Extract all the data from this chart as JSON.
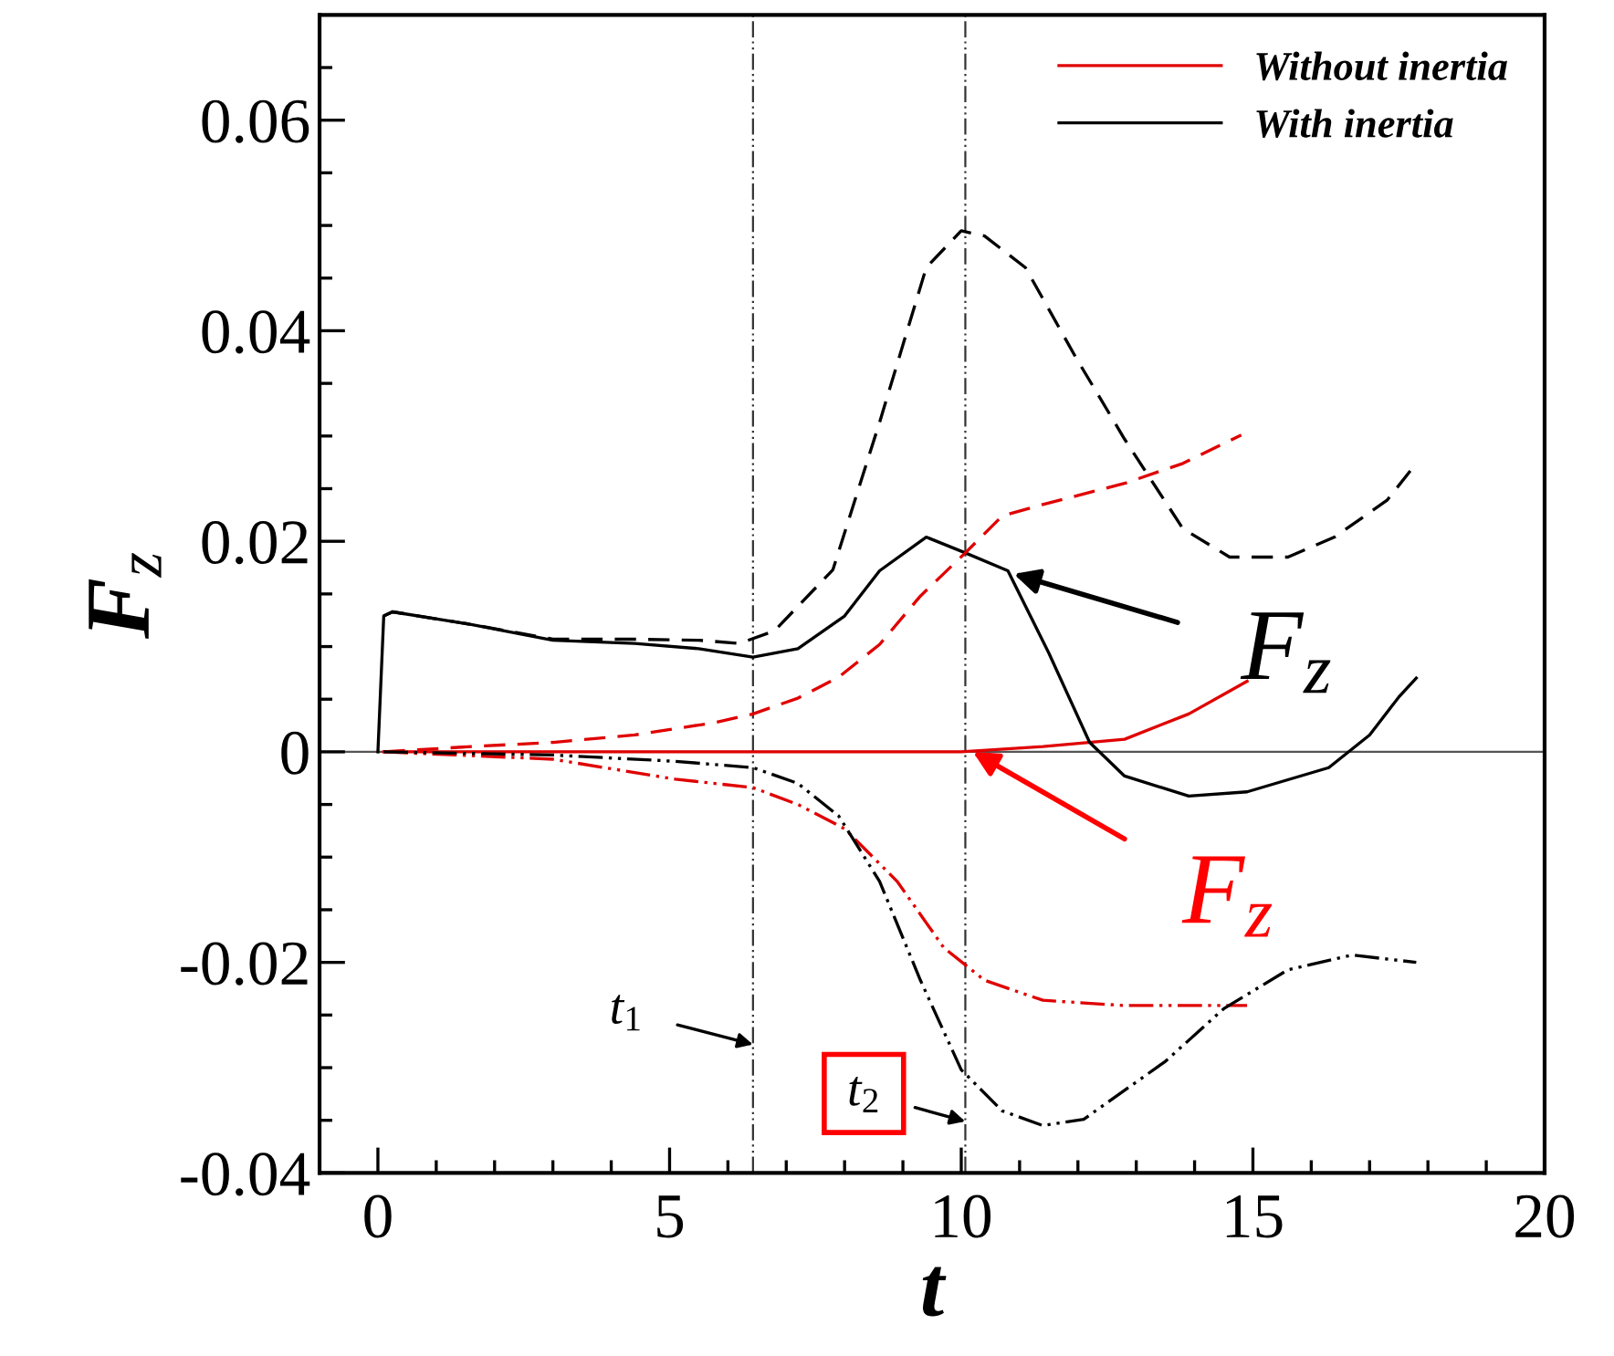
{
  "chart_data": {
    "type": "line",
    "xlabel": "t",
    "ylabel": "F$_{z}$",
    "xlim": [
      -1,
      20
    ],
    "ylim": [
      -0.04,
      0.07
    ],
    "xticks": [
      0,
      {
        "value": 1,
        "label": null
      },
      {
        "value": 2,
        "label": null
      },
      {
        "value": 3,
        "label": null
      },
      {
        "value": 4,
        "label": null
      },
      5,
      {
        "value": 6,
        "label": null
      },
      {
        "value": 7,
        "label": null
      },
      {
        "value": 8,
        "label": null
      },
      {
        "value": 9,
        "label": null
      },
      10,
      {
        "value": 11,
        "label": null
      },
      {
        "value": 12,
        "label": null
      },
      {
        "value": 13,
        "label": null
      },
      {
        "value": 14,
        "label": null
      },
      15,
      {
        "value": 16,
        "label": null
      },
      {
        "value": 17,
        "label": null
      },
      {
        "value": 18,
        "label": null
      },
      {
        "value": 19,
        "label": null
      },
      20
    ],
    "yticks": [
      -0.04,
      {
        "value": -0.035,
        "label": null
      },
      {
        "value": -0.03,
        "label": null
      },
      {
        "value": -0.025,
        "label": null
      },
      -0.02,
      {
        "value": -0.015,
        "label": null
      },
      {
        "value": -0.01,
        "label": null
      },
      {
        "value": -0.005,
        "label": null
      },
      0,
      {
        "value": 0.005,
        "label": null
      },
      {
        "value": 0.01,
        "label": null
      },
      {
        "value": 0.015,
        "label": null
      },
      0.02,
      {
        "value": 0.025,
        "label": null
      },
      {
        "value": 0.03,
        "label": null
      },
      {
        "value": 0.035,
        "label": null
      },
      0.04,
      {
        "value": 0.045,
        "label": null
      },
      {
        "value": 0.05,
        "label": null
      },
      {
        "value": 0.055,
        "label": null
      },
      0.06,
      {
        "value": 0.065,
        "label": null
      }
    ],
    "grid": false,
    "legend": "top right",
    "marker": "none",
    "series": [
      {
        "name": "Without inertia",
        "color": "#e00000",
        "line_style": "solid",
        "x": [
          0.1,
          2,
          4,
          6,
          8,
          10,
          11.4,
          12.8,
          13.9,
          14.9
        ],
        "values": [
          0,
          0,
          0,
          0,
          0,
          0,
          0.0005,
          0.0012,
          0.0036,
          0.0067
        ]
      },
      {
        "name": "With inertia",
        "color": "#000000",
        "line_style": "solid",
        "x": [
          0,
          0.1,
          0.25,
          1.6,
          3.0,
          4.4,
          5.5,
          6.43,
          7.2,
          8.0,
          8.6,
          9.4,
          10.07,
          10.8,
          11.5,
          12.2,
          12.8,
          13.9,
          14.9,
          16.3,
          17.0,
          17.5,
          17.8
        ],
        "values": [
          0,
          0.0129,
          0.0133,
          0.0121,
          0.0106,
          0.0103,
          0.0098,
          0.009,
          0.0098,
          0.0129,
          0.0172,
          0.0204,
          0.0189,
          0.0172,
          0.0094,
          0.0009,
          -0.0023,
          -0.0042,
          -0.0038,
          -0.0015,
          0.0016,
          0.0052,
          0.007
        ]
      },
      {
        "color": "#000000",
        "line_style": "dashed",
        "x": [
          0.1,
          0.25,
          1.6,
          3.0,
          4.4,
          5.5,
          6.2,
          6.8,
          7.8,
          8.6,
          9.4,
          10.0,
          10.4,
          11.1,
          11.96,
          12.8,
          13.8,
          14.6,
          15.6,
          16.4,
          17.3,
          17.8
        ],
        "values": [
          0.0129,
          0.0133,
          0.0121,
          0.0107,
          0.0107,
          0.0106,
          0.0103,
          0.0115,
          0.0173,
          0.0313,
          0.046,
          0.0495,
          0.049,
          0.046,
          0.0375,
          0.0297,
          0.0212,
          0.0185,
          0.0185,
          0.0204,
          0.0239,
          0.0274
        ]
      },
      {
        "color": "#e00000",
        "line_style": "dashed",
        "x": [
          0.1,
          1.6,
          3.0,
          4.4,
          5.8,
          6.43,
          7.2,
          7.9,
          8.6,
          9.3,
          10.07,
          10.7,
          11.4,
          12.8,
          13.8,
          14.8
        ],
        "values": [
          0,
          0.0005,
          0.0009,
          0.0016,
          0.0028,
          0.0036,
          0.0051,
          0.0071,
          0.0102,
          0.0148,
          0.0189,
          0.0224,
          0.0235,
          0.0255,
          0.0274,
          0.0301
        ]
      },
      {
        "color": "#e00000",
        "line_style": "dashdot",
        "x": [
          0.1,
          3.0,
          5.1,
          6.43,
          7.2,
          8.0,
          8.9,
          9.7,
          10.4,
          11.4,
          12.8,
          14.9
        ],
        "values": [
          0,
          -0.0007,
          -0.0026,
          -0.0034,
          -0.005,
          -0.0073,
          -0.0123,
          -0.0186,
          -0.0217,
          -0.0236,
          -0.0241,
          -0.0241
        ]
      },
      {
        "color": "#000000",
        "line_style": "dashdot",
        "x": [
          0.1,
          3.0,
          5.1,
          6.43,
          7.2,
          7.9,
          8.6,
          9.3,
          10.0,
          10.7,
          11.4,
          12.1,
          13.5,
          14.5,
          15.6,
          16.7,
          17.8
        ],
        "values": [
          0,
          -0.0003,
          -0.0009,
          -0.0015,
          -0.003,
          -0.0061,
          -0.0123,
          -0.0217,
          -0.0302,
          -0.0341,
          -0.0355,
          -0.0349,
          -0.0294,
          -0.0244,
          -0.0207,
          -0.0193,
          -0.02
        ]
      }
    ],
    "ref_lines": [
      {
        "axis": "y",
        "value": 0,
        "color": "#555555",
        "line_style": "solid"
      },
      {
        "axis": "x",
        "value": 6.43,
        "color": "#333333",
        "line_style": "dashdot"
      },
      {
        "axis": "x",
        "value": 10.07,
        "color": "#333333",
        "line_style": "dashdot"
      }
    ],
    "annotations": [
      {
        "text": "t$_{1}$",
        "x": 6.43,
        "y": -0.0278
      },
      {
        "text": "t$_{2}$",
        "x": 10.07,
        "y": -0.0351
      },
      {
        "text": "F$_{z}$",
        "x": 10.9,
        "y": 0.0169
      },
      {
        "text": "F$_{z}$",
        "x": 10.2,
        "y": 0
      }
    ]
  }
}
